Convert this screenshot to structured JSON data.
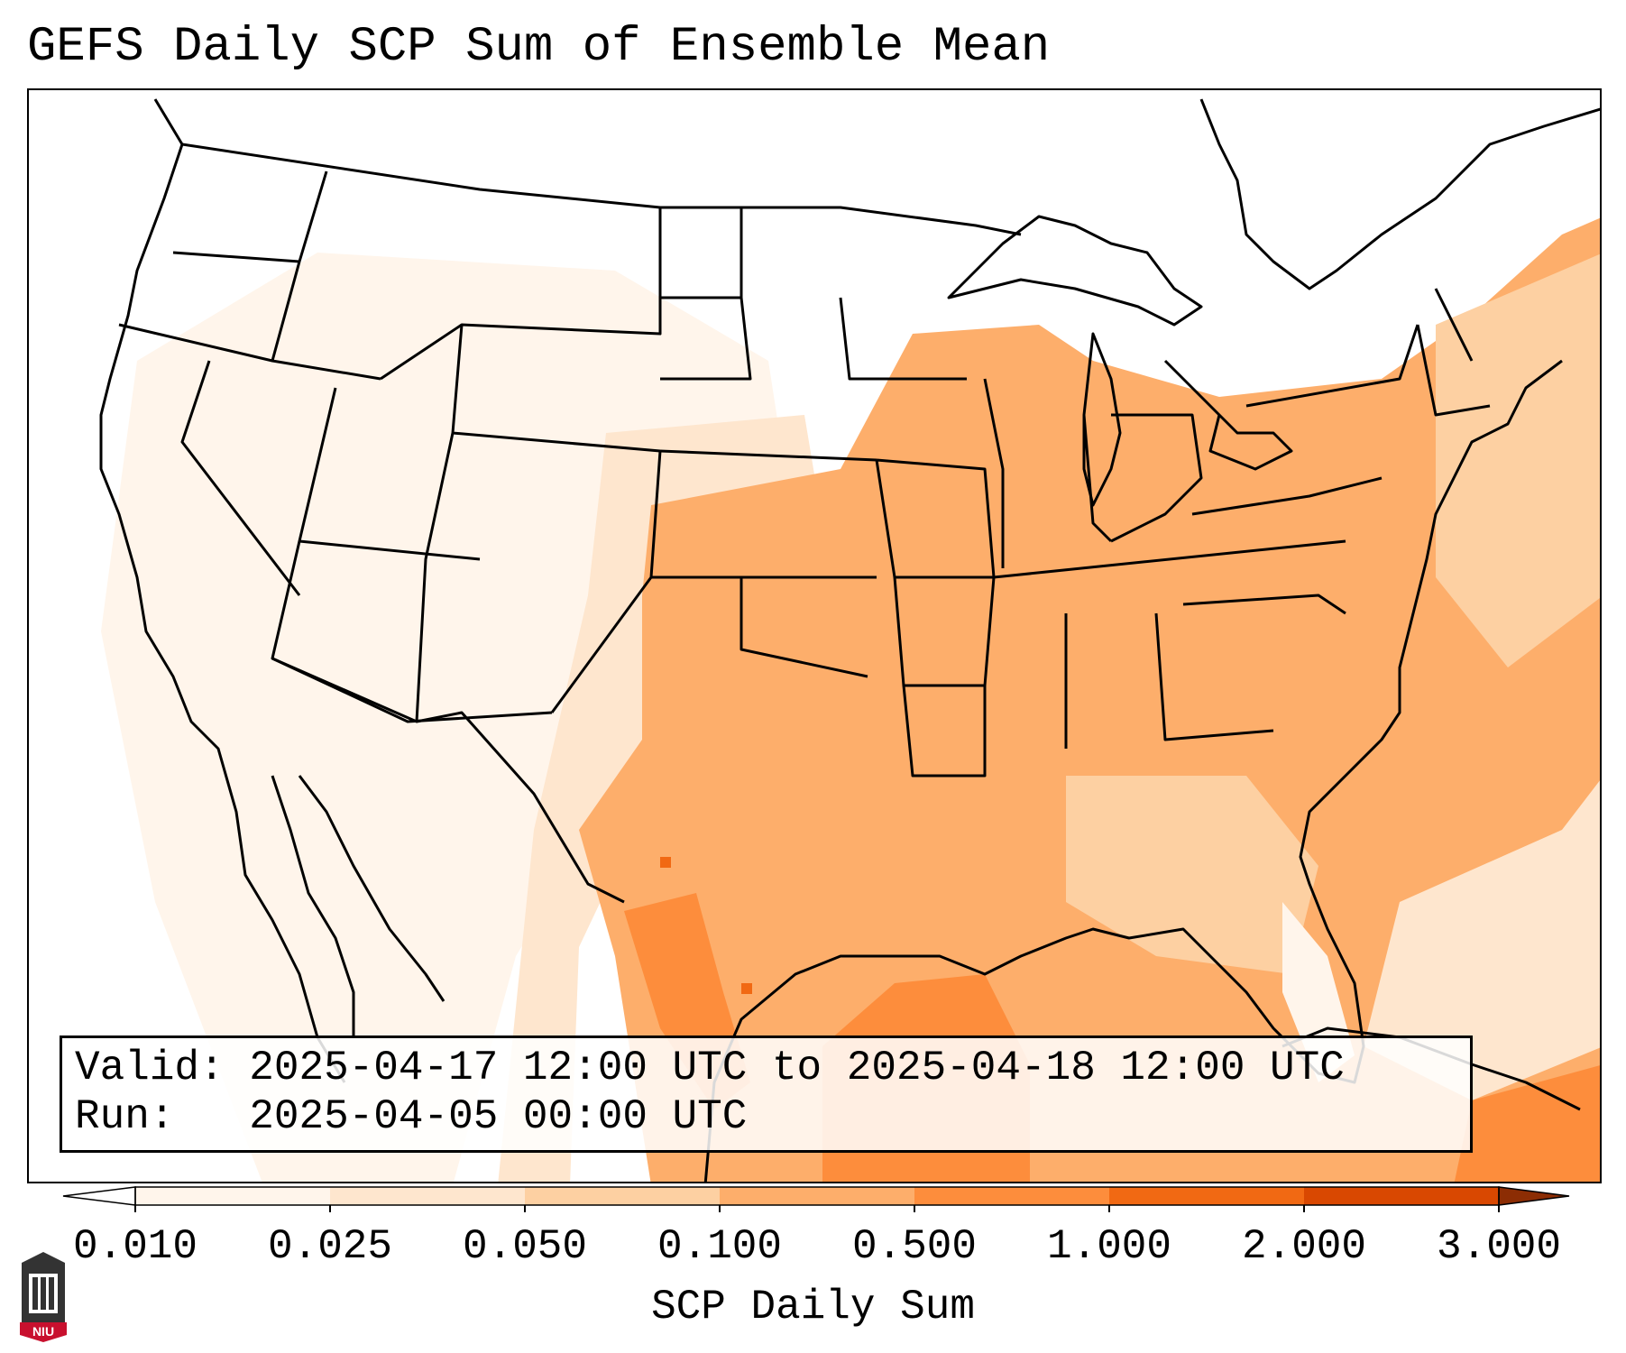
{
  "title": "GEFS Daily SCP Sum of Ensemble Mean",
  "info": {
    "valid_label": "Valid:",
    "valid_value": "2025-04-17 12:00 UTC to 2025-04-18 12:00 UTC",
    "run_label": "Run:",
    "run_value": "2025-04-05 00:00 UTC"
  },
  "colorbar": {
    "label": "SCP Daily Sum",
    "ticks": [
      "0.010",
      "0.025",
      "0.050",
      "0.100",
      "0.500",
      "1.000",
      "2.000",
      "3.000"
    ],
    "colors": [
      "#fff5eb",
      "#fee6ce",
      "#fdd0a2",
      "#fdae6b",
      "#fd8d3c",
      "#f16913",
      "#d94801"
    ],
    "under_color": "#ffffff",
    "over_color": "#8c2d04"
  },
  "logo_text": "NIU"
}
